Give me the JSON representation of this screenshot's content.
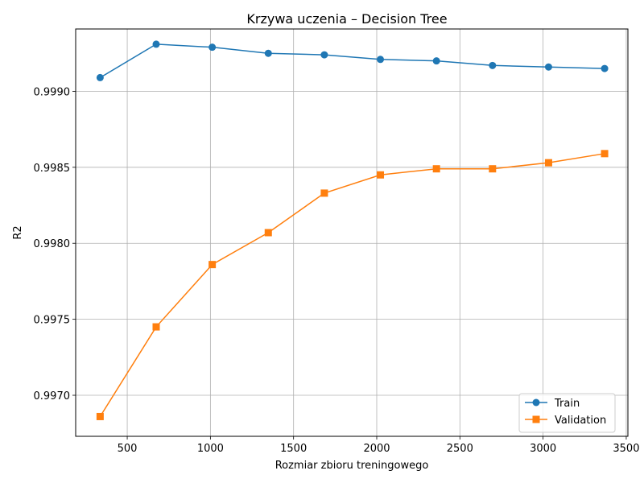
{
  "chart_data": {
    "type": "line",
    "title": "Krzywa uczenia – Decision Tree",
    "xlabel": "Rozmiar zbioru treningowego",
    "ylabel": "R2",
    "xlim": [
      190,
      3510
    ],
    "ylim": [
      0.99673,
      0.99941
    ],
    "xticks": [
      500,
      1000,
      1500,
      2000,
      2500,
      3000,
      3500
    ],
    "xtick_labels": [
      "500",
      "1000",
      "1500",
      "2000",
      "2500",
      "3000",
      "3500"
    ],
    "yticks": [
      0.997,
      0.9975,
      0.998,
      0.9985,
      0.999
    ],
    "ytick_labels": [
      "0.9970",
      "0.9975",
      "0.9980",
      "0.9985",
      "0.9990"
    ],
    "grid": true,
    "legend_position": "lower-right",
    "x": [
      337,
      674,
      1011,
      1348,
      1685,
      2022,
      2359,
      2696,
      3033,
      3370
    ],
    "series": [
      {
        "name": "Train",
        "color": "#1f77b4",
        "marker": "circle",
        "values": [
          0.99909,
          0.99931,
          0.99929,
          0.99925,
          0.99924,
          0.99921,
          0.9992,
          0.99917,
          0.99916,
          0.99915
        ]
      },
      {
        "name": "Validation",
        "color": "#ff7f0e",
        "marker": "square",
        "values": [
          0.99686,
          0.99745,
          0.99786,
          0.99807,
          0.99833,
          0.99845,
          0.99849,
          0.99849,
          0.99853,
          0.99859
        ]
      }
    ]
  }
}
